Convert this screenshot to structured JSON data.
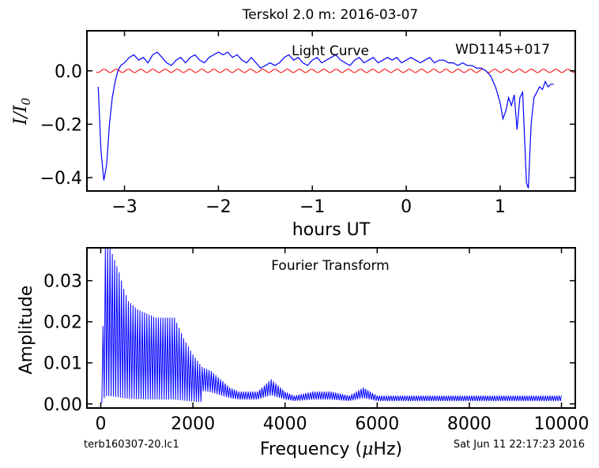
{
  "title": "Terskol 2.0 m:  2016-03-07",
  "footer_left": "terb160307-20.lc1",
  "footer_right": "Sat Jun 11 22:17:23 2016",
  "chart_data": [
    {
      "type": "line",
      "annotation_left": "Light Curve",
      "annotation_right": "WD1145+017",
      "xlabel": "hours UT",
      "ylabel": "I/I0",
      "xlim": [
        -3.4,
        1.8
      ],
      "ylim": [
        -0.45,
        0.15
      ],
      "xticks": [
        -3,
        -2,
        -1,
        0,
        1
      ],
      "xtick_labels": [
        "−3",
        "−2",
        "−1",
        "0",
        "1"
      ],
      "yticks": [
        -0.4,
        -0.2,
        0.0
      ],
      "ytick_labels": [
        "−0.4",
        "−0.2",
        "0.0"
      ],
      "series": [
        {
          "color": "#0000ff",
          "x": [
            -3.28,
            -3.25,
            -3.22,
            -3.19,
            -3.16,
            -3.13,
            -3.1,
            -3.07,
            -3.04,
            -3.0,
            -2.95,
            -2.9,
            -2.85,
            -2.8,
            -2.75,
            -2.7,
            -2.65,
            -2.6,
            -2.55,
            -2.5,
            -2.45,
            -2.4,
            -2.35,
            -2.3,
            -2.25,
            -2.2,
            -2.15,
            -2.1,
            -2.05,
            -2.0,
            -1.95,
            -1.9,
            -1.85,
            -1.8,
            -1.75,
            -1.7,
            -1.65,
            -1.6,
            -1.55,
            -1.5,
            -1.45,
            -1.4,
            -1.35,
            -1.3,
            -1.25,
            -1.2,
            -1.15,
            -1.1,
            -1.05,
            -1.0,
            -0.95,
            -0.9,
            -0.85,
            -0.8,
            -0.75,
            -0.7,
            -0.65,
            -0.6,
            -0.55,
            -0.5,
            -0.45,
            -0.4,
            -0.35,
            -0.3,
            -0.25,
            -0.2,
            -0.15,
            -0.1,
            -0.05,
            0.0,
            0.05,
            0.1,
            0.15,
            0.2,
            0.25,
            0.3,
            0.35,
            0.4,
            0.45,
            0.5,
            0.55,
            0.6,
            0.65,
            0.7,
            0.75,
            0.8,
            0.85,
            0.9,
            0.95,
            1.0,
            1.03,
            1.06,
            1.09,
            1.12,
            1.15,
            1.18,
            1.21,
            1.24,
            1.26,
            1.28,
            1.3,
            1.33,
            1.36,
            1.39,
            1.42,
            1.45,
            1.48,
            1.51,
            1.54,
            1.57
          ],
          "y": [
            -0.06,
            -0.3,
            -0.41,
            -0.35,
            -0.2,
            -0.1,
            -0.04,
            0.0,
            0.02,
            0.03,
            0.05,
            0.06,
            0.04,
            0.05,
            0.03,
            0.06,
            0.07,
            0.05,
            0.03,
            0.02,
            0.04,
            0.05,
            0.03,
            0.05,
            0.06,
            0.04,
            0.03,
            0.05,
            0.06,
            0.07,
            0.06,
            0.07,
            0.05,
            0.06,
            0.04,
            0.03,
            0.05,
            0.03,
            0.01,
            0.02,
            0.03,
            0.02,
            0.03,
            0.05,
            0.06,
            0.04,
            0.05,
            0.03,
            0.02,
            0.04,
            0.05,
            0.03,
            0.04,
            0.05,
            0.06,
            0.04,
            0.03,
            0.02,
            0.04,
            0.05,
            0.03,
            0.04,
            0.05,
            0.03,
            0.04,
            0.05,
            0.04,
            0.05,
            0.03,
            0.04,
            0.05,
            0.04,
            0.03,
            0.04,
            0.05,
            0.03,
            0.04,
            0.04,
            0.03,
            0.03,
            0.02,
            0.03,
            0.02,
            0.02,
            0.01,
            0.01,
            0.0,
            -0.02,
            -0.06,
            -0.12,
            -0.18,
            -0.15,
            -0.1,
            -0.13,
            -0.09,
            -0.22,
            -0.1,
            -0.08,
            -0.25,
            -0.42,
            -0.44,
            -0.2,
            -0.1,
            -0.08,
            -0.06,
            -0.07,
            -0.04,
            -0.06,
            -0.05,
            -0.05
          ]
        },
        {
          "color": "#ff0000",
          "model": "sinusoid",
          "amplitude": 0.006,
          "period_hours": 0.13,
          "offset": 0.0,
          "x_range": [
            -3.3,
            1.8
          ]
        }
      ]
    },
    {
      "type": "line",
      "annotation": "Fourier Transform",
      "xlabel": "Frequency (μHz)",
      "xlabel_prefix": "Frequency (",
      "xlabel_mu": "μ",
      "xlabel_suffix": "Hz)",
      "ylabel": "Amplitude",
      "xlim": [
        -300,
        10300
      ],
      "ylim": [
        -0.001,
        0.038
      ],
      "xticks": [
        0,
        2000,
        4000,
        6000,
        8000,
        10000
      ],
      "xtick_labels": [
        "0",
        "2000",
        "4000",
        "6000",
        "8000",
        "10000"
      ],
      "yticks": [
        0.0,
        0.01,
        0.02,
        0.03
      ],
      "ytick_labels": [
        "0.00",
        "0.01",
        "0.02",
        "0.03"
      ],
      "series": [
        {
          "color": "#0000ff",
          "envelope_freq": [
            0,
            100,
            200,
            300,
            400,
            500,
            600,
            800,
            1000,
            1200,
            1400,
            1600,
            1800,
            2000,
            2200,
            2400,
            2600,
            2800,
            3000,
            3200,
            3400,
            3600,
            3700,
            3800,
            3900,
            4000,
            4200,
            4600,
            5000,
            5400,
            5700,
            6000,
            6400,
            7000,
            7500,
            8000,
            8500,
            9000,
            9500,
            10000
          ],
          "envelope_amp": [
            0.0,
            0.038,
            0.038,
            0.035,
            0.032,
            0.028,
            0.025,
            0.023,
            0.022,
            0.021,
            0.021,
            0.021,
            0.016,
            0.012,
            0.009,
            0.008,
            0.006,
            0.004,
            0.003,
            0.003,
            0.003,
            0.005,
            0.006,
            0.005,
            0.004,
            0.003,
            0.002,
            0.003,
            0.003,
            0.002,
            0.004,
            0.002,
            0.002,
            0.002,
            0.002,
            0.002,
            0.002,
            0.002,
            0.002,
            0.002
          ],
          "peak_spacing_uhz": 50
        }
      ]
    }
  ]
}
